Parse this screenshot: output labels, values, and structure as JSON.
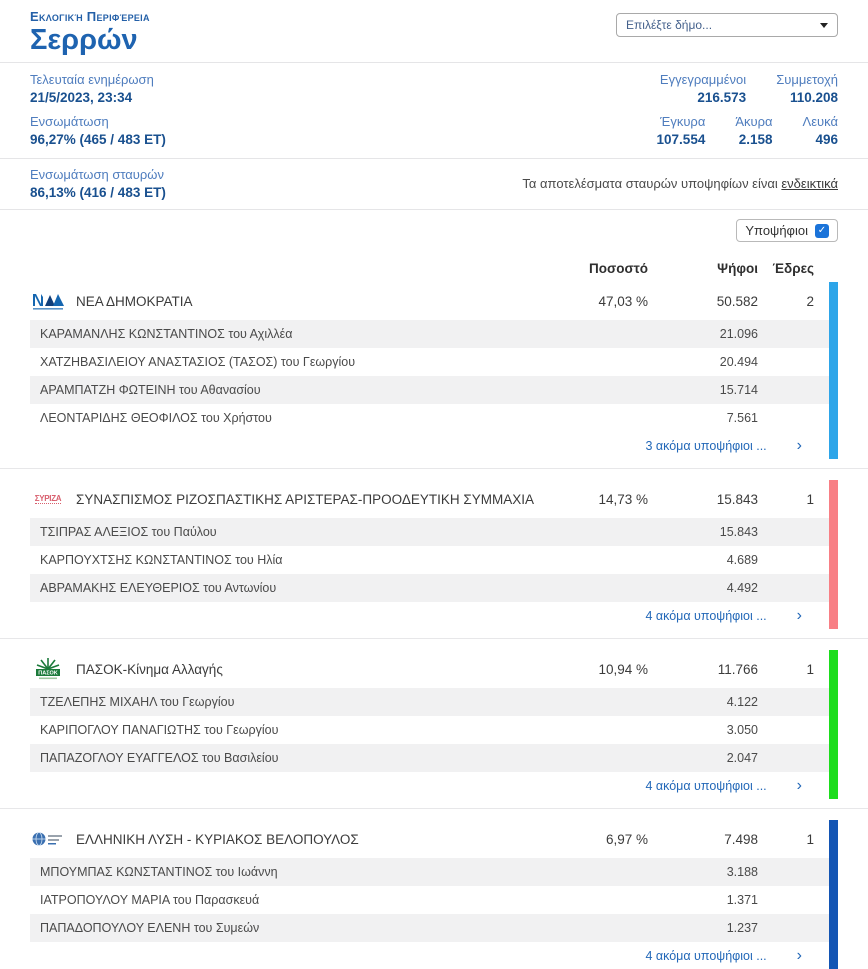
{
  "page": {
    "region_label": "Εκλογική Περιφέρεια",
    "region_name": "Σερρών",
    "municipality_placeholder": "Επιλέξτε δήμο..."
  },
  "stats": {
    "last_update_label": "Τελευταία ενημέρωση",
    "last_update_value": "21/5/2023, 23:34",
    "integration_label": "Ενσωμάτωση",
    "integration_value": "96,27% (465 / 483 ΕΤ)",
    "registered_label": "Εγγεγραμμένοι",
    "registered_value": "216.573",
    "participation_label": "Συμμετοχή",
    "participation_value": "110.208",
    "valid_label": "Έγκυρα",
    "valid_value": "107.554",
    "invalid_label": "Άκυρα",
    "invalid_value": "2.158",
    "blank_label": "Λευκά",
    "blank_value": "496",
    "crosses_label": "Ενσωμάτωση σταυρών",
    "crosses_value": "86,13% (416 / 483 ΕΤ)",
    "note_text": "Τα αποτελέσματα σταυρών υποψηφίων είναι ",
    "note_link": "ενδεικτικά"
  },
  "toolbar": {
    "candidates_toggle_label": "Υποψήφιοι"
  },
  "table": {
    "headers": {
      "percent": "Ποσοστό",
      "votes": "Ψήφοι",
      "seats": "Έδρες"
    }
  },
  "icons": {
    "chevron_right": "›",
    "checkbox_check": "✓"
  },
  "parties": [
    {
      "name": "ΝΕΑ ΔΗΜΟΚΡΑΤΙΑ",
      "logo": "nd-logo",
      "color": "#2da5e9",
      "percent": "47,03 %",
      "votes": "50.582",
      "seats": "2",
      "more_label": "3 ακόμα υποψήφιοι ...",
      "candidates": [
        {
          "name": "ΚΑΡΑΜΑΝΛΗΣ ΚΩΝΣΤΑΝΤΙΝΟΣ του Αχιλλέα",
          "votes": "21.096"
        },
        {
          "name": "ΧΑΤΖΗΒΑΣΙΛΕΙΟΥ ΑΝΑΣΤΑΣΙΟΣ (ΤΑΣΟΣ) του Γεωργίου",
          "votes": "20.494"
        },
        {
          "name": "ΑΡΑΜΠΑΤΖΗ ΦΩΤΕΙΝΗ του Αθανασίου",
          "votes": "15.714"
        },
        {
          "name": "ΛΕΟΝΤΑΡΙΔΗΣ ΘΕΟΦΙΛΟΣ του Χρήστου",
          "votes": "7.561"
        }
      ]
    },
    {
      "name": "ΣΥΝΑΣΠΙΣΜΟΣ ΡΙΖΟΣΠΑΣΤΙΚΗΣ ΑΡΙΣΤΕΡΑΣ-ΠΡΟΟΔΕΥΤΙΚΗ ΣΥΜΜΑΧΙΑ",
      "logo": "syriza-logo",
      "color": "#f87f85",
      "percent": "14,73 %",
      "votes": "15.843",
      "seats": "1",
      "more_label": "4 ακόμα υποψήφιοι ...",
      "candidates": [
        {
          "name": "ΤΣΙΠΡΑΣ ΑΛΕΞΙΟΣ του Παύλου",
          "votes": "15.843"
        },
        {
          "name": "ΚΑΡΠΟΥΧΤΣΗΣ ΚΩΝΣΤΑΝΤΙΝΟΣ του Ηλία",
          "votes": "4.689"
        },
        {
          "name": "ΑΒΡΑΜΑΚΗΣ ΕΛΕΥΘΕΡΙΟΣ του Αντωνίου",
          "votes": "4.492"
        }
      ]
    },
    {
      "name": "ΠΑΣΟΚ-Κίνημα Αλλαγής",
      "logo": "pasok-logo",
      "color": "#1ddd1d",
      "percent": "10,94 %",
      "votes": "11.766",
      "seats": "1",
      "more_label": "4 ακόμα υποψήφιοι ...",
      "candidates": [
        {
          "name": "ΤΖΕΛΕΠΗΣ ΜΙΧΑΗΛ του Γεωργίου",
          "votes": "4.122"
        },
        {
          "name": "ΚΑΡΙΠΟΓΛΟΥ ΠΑΝΑΓΙΩΤΗΣ του Γεωργίου",
          "votes": "3.050"
        },
        {
          "name": "ΠΑΠΑΖΟΓΛΟΥ ΕΥΑΓΓΕΛΟΣ του Βασιλείου",
          "votes": "2.047"
        }
      ]
    },
    {
      "name": "ΕΛΛΗΝΙΚΗ ΛΥΣΗ - ΚΥΡΙΑΚΟΣ ΒΕΛΟΠΟΥΛΟΣ",
      "logo": "elliniki-lysi-logo",
      "color": "#1355b4",
      "percent": "6,97 %",
      "votes": "7.498",
      "seats": "1",
      "more_label": "4 ακόμα υποψήφιοι ...",
      "candidates": [
        {
          "name": "ΜΠΟΥΜΠΑΣ ΚΩΝΣΤΑΝΤΙΝΟΣ του Ιωάννη",
          "votes": "3.188"
        },
        {
          "name": "ΙΑΤΡΟΠΟΥΛΟΥ ΜΑΡΙΑ του Παρασκευά",
          "votes": "1.371"
        },
        {
          "name": "ΠΑΠΑΔΟΠΟΥΛΟΥ ΕΛΕΝΗ του Συμεών",
          "votes": "1.237"
        }
      ]
    }
  ]
}
